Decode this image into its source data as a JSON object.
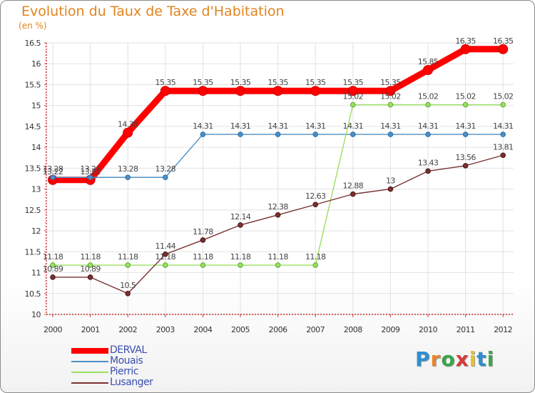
{
  "chart_data": {
    "type": "line",
    "title": "Evolution du Taux de Taxe d'Habitation",
    "subtitle": "(en %)",
    "x": [
      "2000",
      "2001",
      "2002",
      "2003",
      "2004",
      "2005",
      "2006",
      "2007",
      "2008",
      "2009",
      "2010",
      "2011",
      "2012"
    ],
    "ylim": [
      10,
      16.5
    ],
    "yticks": [
      "10",
      "10.5",
      "11",
      "11.5",
      "12",
      "12.5",
      "13",
      "13.5",
      "14",
      "14.5",
      "15",
      "15.5",
      "16",
      "16.5"
    ],
    "grid": true,
    "legend": "bottom-left",
    "series": [
      {
        "name": "DERVAL",
        "color": "#ff0000",
        "values": [
          13.22,
          13.22,
          14.35,
          15.35,
          15.35,
          15.35,
          15.35,
          15.35,
          15.35,
          15.35,
          15.85,
          16.35,
          16.35
        ]
      },
      {
        "name": "Mouais",
        "color": "#4d8fc4",
        "values": [
          13.28,
          13.28,
          13.28,
          13.28,
          14.31,
          14.31,
          14.31,
          14.31,
          14.31,
          14.31,
          14.31,
          14.31,
          14.31
        ]
      },
      {
        "name": "Pierric",
        "color": "#99e060",
        "values": [
          11.18,
          11.18,
          11.18,
          11.18,
          11.18,
          11.18,
          11.18,
          11.18,
          15.02,
          15.02,
          15.02,
          15.02,
          15.02
        ]
      },
      {
        "name": "Lusanger",
        "color": "#7a3030",
        "values": [
          10.89,
          10.89,
          10.5,
          11.44,
          11.78,
          12.14,
          12.38,
          12.63,
          12.88,
          13,
          13.43,
          13.56,
          13.81
        ]
      }
    ]
  },
  "logo": {
    "letters": [
      "P",
      "r",
      "o",
      "x",
      "i",
      "t",
      "i"
    ],
    "colors": [
      "#2f8fd0",
      "#e8852a",
      "#3aa64a",
      "#d63b3b",
      "#e8c22a",
      "#2f8fd0",
      "#3aa64a"
    ]
  }
}
